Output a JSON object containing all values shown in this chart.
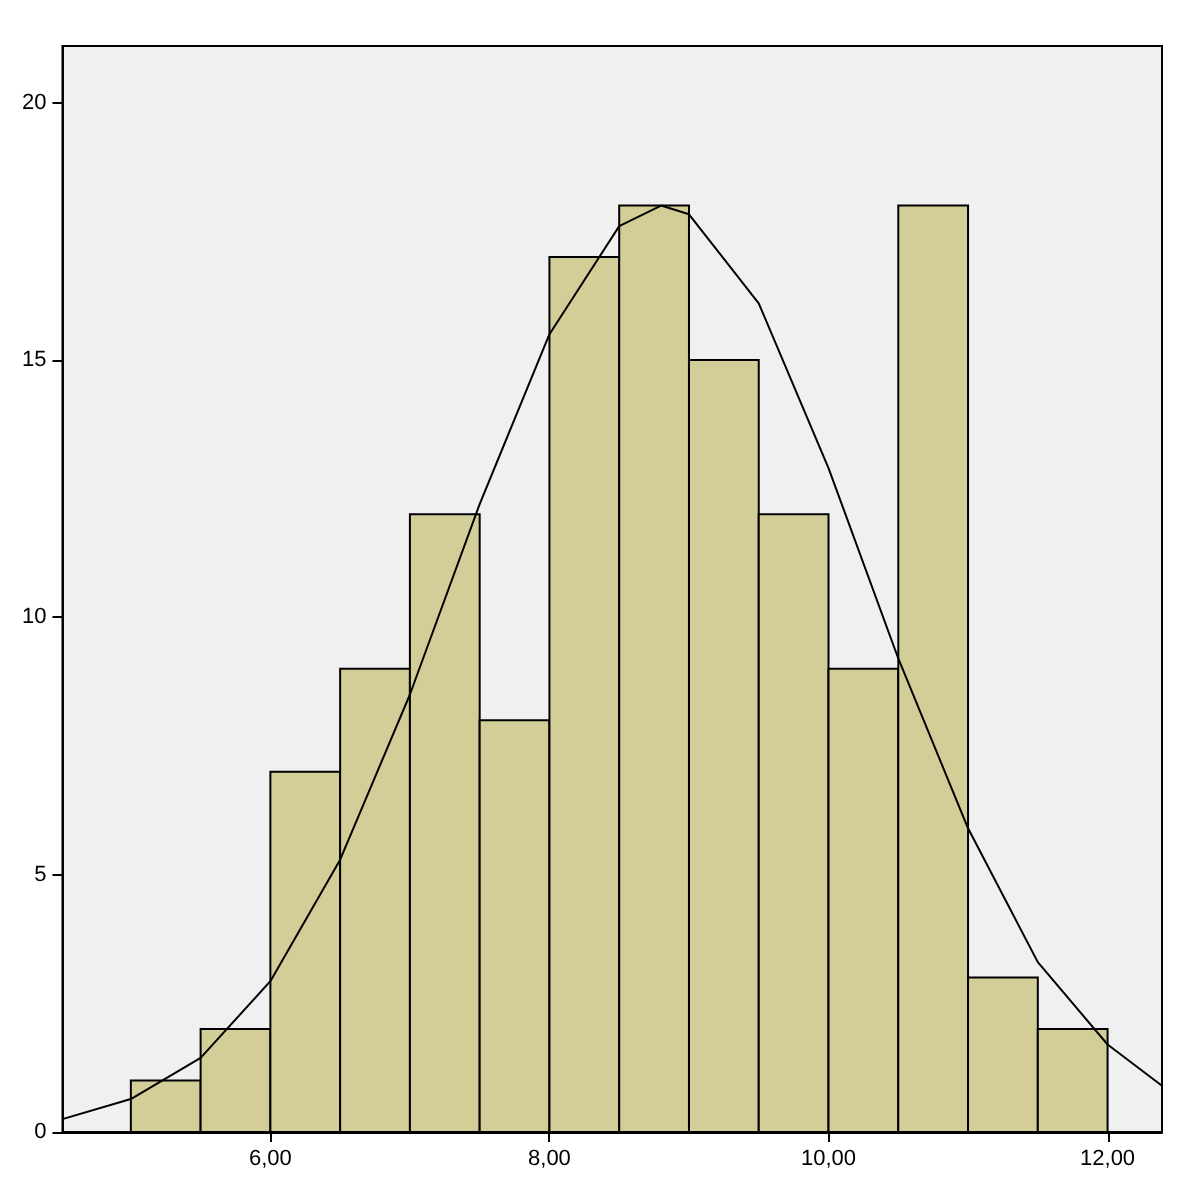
{
  "chart_data": {
    "type": "histogram",
    "bins": [
      5.0,
      5.5,
      6.0,
      6.5,
      7.0,
      7.5,
      8.0,
      8.5,
      9.0,
      9.5,
      10.0,
      10.5,
      11.0,
      11.5,
      12.0
    ],
    "values": [
      1,
      2,
      7,
      9,
      12,
      8,
      17,
      18,
      15,
      12,
      9,
      18,
      3,
      2
    ],
    "color": "#d3ce97",
    "series": [
      {
        "type": "line",
        "color": "#000000",
        "x": [
          4.51,
          5.0,
          5.5,
          6.0,
          6.5,
          7.0,
          7.5,
          8.0,
          8.5,
          8.8,
          9.0,
          9.5,
          10.0,
          10.5,
          11.0,
          11.5,
          12.0,
          12.39
        ],
        "values": [
          0.25,
          0.64,
          1.44,
          2.93,
          5.29,
          8.5,
          12.2,
          15.5,
          17.6,
          18,
          17.83,
          16.1,
          12.9,
          9.2,
          5.9,
          3.3,
          1.7,
          0.9
        ]
      }
    ],
    "xlim": [
      4.51,
      12.39
    ],
    "xticks": [
      {
        "value": 6,
        "label": "6,00"
      },
      {
        "value": 8,
        "label": "8,00"
      },
      {
        "value": 10,
        "label": "10,00"
      },
      {
        "value": 12,
        "label": "12,00"
      }
    ],
    "ylim": [
      0,
      21.1
    ],
    "yticks": [
      0,
      5,
      10,
      15,
      20
    ],
    "grid": false,
    "marker": "none"
  }
}
